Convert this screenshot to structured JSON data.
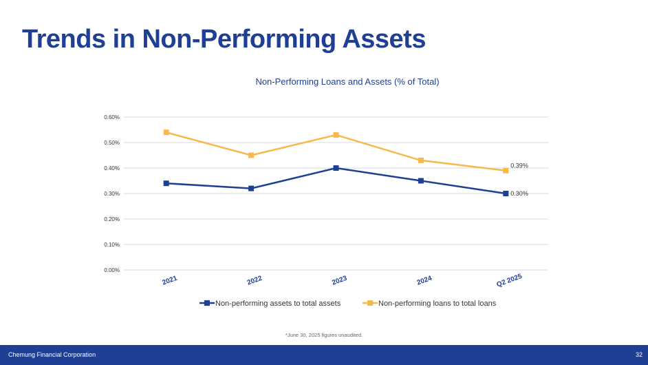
{
  "page": {
    "title": "Trends in Non-Performing Assets"
  },
  "footnote": "*June 30, 2025 figures unaudited.",
  "footer": {
    "company": "Chemung Financial Corporation",
    "page_number": "32"
  },
  "colors": {
    "title": "#1f3f94",
    "footer_bg": "#1f3f94",
    "series_assets": "#1f3f94",
    "series_loans": "#f5b94c",
    "grid": "#d9d9d9"
  },
  "chart_data": {
    "type": "line",
    "title": "Non-Performing Loans and Assets (% of Total)",
    "categories": [
      "2021",
      "2022",
      "2023",
      "2024",
      "Q2 2025"
    ],
    "y_ticks": [
      "0.00%",
      "0.10%",
      "0.20%",
      "0.30%",
      "0.40%",
      "0.50%",
      "0.60%"
    ],
    "ylim": [
      0,
      0.6
    ],
    "grid": true,
    "legend": "bottom",
    "series": [
      {
        "name": "Non-performing assets to total assets",
        "values": [
          0.34,
          0.32,
          0.4,
          0.35,
          0.3
        ],
        "last_label": "0.30%",
        "color": "#1f3f94"
      },
      {
        "name": "Non-performing loans to total loans",
        "values": [
          0.54,
          0.45,
          0.53,
          0.43,
          0.39
        ],
        "last_label": "0.39%",
        "color": "#f5b94c"
      }
    ]
  }
}
